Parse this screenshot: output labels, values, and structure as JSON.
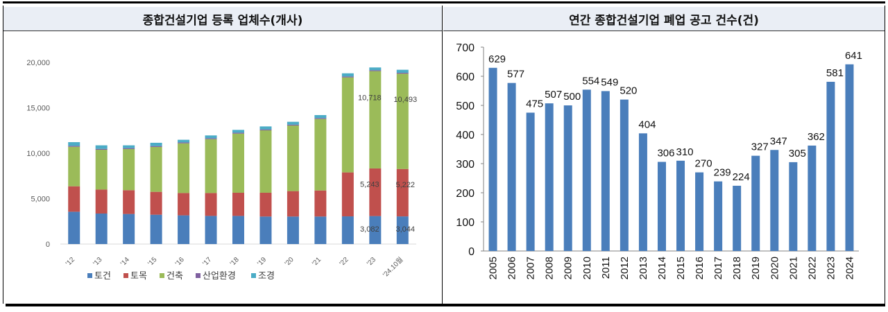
{
  "chart_data": [
    {
      "type": "bar",
      "stacked": true,
      "title": "종합건설기업 등록 업체수(개사)",
      "categories": [
        "'12",
        "'13",
        "'14",
        "'15",
        "'16",
        "'17",
        "'18",
        "'19",
        "'20",
        "'21",
        "'22",
        "'23",
        "'24.10월"
      ],
      "ylim": [
        0,
        20000
      ],
      "yticks": [
        "0",
        "5,000",
        "10,000",
        "15,000",
        "20,000"
      ],
      "ytick_values": [
        0,
        5000,
        10000,
        15000,
        20000
      ],
      "legend_position": "bottom",
      "grid": false,
      "series": [
        {
          "name": "토건",
          "color": "#4a7ebb",
          "values": [
            3560,
            3360,
            3310,
            3230,
            3160,
            3100,
            3100,
            3030,
            3030,
            3030,
            3050,
            3082,
            3044
          ]
        },
        {
          "name": "토목",
          "color": "#c0504d",
          "values": [
            2800,
            2640,
            2620,
            2520,
            2460,
            2520,
            2550,
            2620,
            2800,
            2870,
            4840,
            5243,
            5222
          ]
        },
        {
          "name": "건축",
          "color": "#9bbb59",
          "values": [
            4350,
            4380,
            4530,
            4940,
            5470,
            5930,
            6510,
            6870,
            7220,
            7870,
            10460,
            10718,
            10493
          ]
        },
        {
          "name": "산업환경",
          "color": "#7f60a0",
          "values": [
            100,
            100,
            100,
            100,
            100,
            100,
            100,
            100,
            100,
            100,
            100,
            100,
            100
          ]
        },
        {
          "name": "조경",
          "color": "#4bacc6",
          "values": [
            410,
            390,
            310,
            360,
            290,
            310,
            310,
            330,
            310,
            330,
            350,
            300,
            330
          ]
        }
      ],
      "data_labels": [
        {
          "category": "'23",
          "series": "토건",
          "text": "3,082"
        },
        {
          "category": "'23",
          "series": "토목",
          "text": "5,243"
        },
        {
          "category": "'23",
          "series": "건축",
          "text": "10,718"
        },
        {
          "category": "'24.10월",
          "series": "토건",
          "text": "3,044"
        },
        {
          "category": "'24.10월",
          "series": "토목",
          "text": "5,222"
        },
        {
          "category": "'24.10월",
          "series": "건축",
          "text": "10,493"
        }
      ]
    },
    {
      "type": "bar",
      "title": "연간 종합건설기업 폐업 공고 건수(건)",
      "categories": [
        "2005",
        "2006",
        "2007",
        "2008",
        "2009",
        "2010",
        "2011",
        "2012",
        "2013",
        "2014",
        "2015",
        "2016",
        "2017",
        "2018",
        "2019",
        "2020",
        "2021",
        "2022",
        "2023",
        "2024"
      ],
      "values": [
        629,
        577,
        475,
        507,
        500,
        554,
        549,
        520,
        404,
        306,
        310,
        270,
        239,
        224,
        327,
        347,
        305,
        362,
        581,
        641
      ],
      "ylim": [
        0,
        700
      ],
      "yticks": [
        "0",
        "100",
        "200",
        "300",
        "400",
        "500",
        "600",
        "700"
      ],
      "ytick_values": [
        0,
        100,
        200,
        300,
        400,
        500,
        600,
        700
      ],
      "color": "#4a7ebb",
      "grid": false
    }
  ]
}
